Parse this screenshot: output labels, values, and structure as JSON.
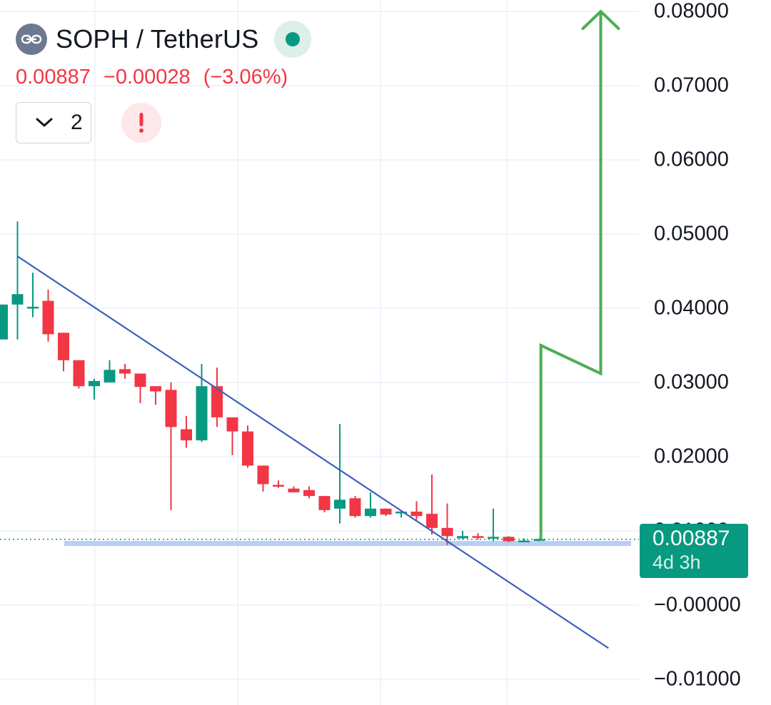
{
  "header": {
    "pair_title": "SOPH / TetherUS",
    "last_price": "0.00887",
    "change_abs": "−0.00028",
    "change_pct": "(−3.06%)",
    "indicators_count": "2",
    "logo_icon": "soph-logo-icon",
    "live_icon": "market-open-dot-icon",
    "alert_icon": "exclamation-icon"
  },
  "price_tag": {
    "price": "0.00887",
    "countdown": "4d 3h"
  },
  "colors": {
    "up": "#089981",
    "down": "#f23645",
    "trendline": "#3d5fbf",
    "projection": "#4caf50",
    "support": "#b9cdf5",
    "price_tag": "#089981"
  },
  "chart_data": {
    "type": "candlestick",
    "title": "SOPH / TetherUS",
    "y_axis": {
      "ticks": [
        "0.08000",
        "0.07000",
        "0.06000",
        "0.05000",
        "0.04000",
        "0.03000",
        "0.02000",
        "0.01000",
        "−0.00000",
        "−0.01000"
      ],
      "tick_values": [
        0.08,
        0.07,
        0.06,
        0.05,
        0.04,
        0.03,
        0.02,
        0.01,
        0.0,
        -0.01
      ]
    },
    "grid": true,
    "last_price": 0.00887,
    "candles": [
      {
        "o": 0.0358,
        "h": 0.0405,
        "l": 0.0358,
        "c": 0.0405
      },
      {
        "o": 0.0405,
        "h": 0.0517,
        "l": 0.0358,
        "c": 0.0419
      },
      {
        "o": 0.0402,
        "h": 0.0448,
        "l": 0.0388,
        "c": 0.0402
      },
      {
        "o": 0.041,
        "h": 0.0425,
        "l": 0.0355,
        "c": 0.0365
      },
      {
        "o": 0.0367,
        "h": 0.0367,
        "l": 0.0315,
        "c": 0.033
      },
      {
        "o": 0.033,
        "h": 0.033,
        "l": 0.0292,
        "c": 0.0295
      },
      {
        "o": 0.0295,
        "h": 0.0305,
        "l": 0.0277,
        "c": 0.0302
      },
      {
        "o": 0.03,
        "h": 0.033,
        "l": 0.03,
        "c": 0.0317
      },
      {
        "o": 0.0318,
        "h": 0.0325,
        "l": 0.0305,
        "c": 0.0312
      },
      {
        "o": 0.0312,
        "h": 0.0312,
        "l": 0.0272,
        "c": 0.0294
      },
      {
        "o": 0.0295,
        "h": 0.0295,
        "l": 0.027,
        "c": 0.0288
      },
      {
        "o": 0.029,
        "h": 0.03,
        "l": 0.0128,
        "c": 0.024
      },
      {
        "o": 0.0237,
        "h": 0.0255,
        "l": 0.0212,
        "c": 0.0222
      },
      {
        "o": 0.0222,
        "h": 0.0325,
        "l": 0.022,
        "c": 0.0295
      },
      {
        "o": 0.0295,
        "h": 0.032,
        "l": 0.024,
        "c": 0.0253
      },
      {
        "o": 0.0253,
        "h": 0.0253,
        "l": 0.0202,
        "c": 0.0234
      },
      {
        "o": 0.0234,
        "h": 0.0242,
        "l": 0.0185,
        "c": 0.0188
      },
      {
        "o": 0.0188,
        "h": 0.0188,
        "l": 0.0153,
        "c": 0.0163
      },
      {
        "o": 0.0162,
        "h": 0.0168,
        "l": 0.0158,
        "c": 0.016
      },
      {
        "o": 0.0157,
        "h": 0.016,
        "l": 0.0152,
        "c": 0.0152
      },
      {
        "o": 0.0155,
        "h": 0.016,
        "l": 0.0144,
        "c": 0.0147
      },
      {
        "o": 0.0147,
        "h": 0.0147,
        "l": 0.0125,
        "c": 0.0128
      },
      {
        "o": 0.013,
        "h": 0.0244,
        "l": 0.011,
        "c": 0.0142
      },
      {
        "o": 0.0144,
        "h": 0.0147,
        "l": 0.0118,
        "c": 0.012
      },
      {
        "o": 0.012,
        "h": 0.0152,
        "l": 0.0118,
        "c": 0.013
      },
      {
        "o": 0.013,
        "h": 0.013,
        "l": 0.012,
        "c": 0.0122
      },
      {
        "o": 0.0124,
        "h": 0.0128,
        "l": 0.0118,
        "c": 0.0126
      },
      {
        "o": 0.0126,
        "h": 0.014,
        "l": 0.0115,
        "c": 0.012
      },
      {
        "o": 0.0123,
        "h": 0.0176,
        "l": 0.0095,
        "c": 0.0104
      },
      {
        "o": 0.0104,
        "h": 0.0137,
        "l": 0.0081,
        "c": 0.0093
      },
      {
        "o": 0.009,
        "h": 0.01,
        "l": 0.0089,
        "c": 0.0093
      },
      {
        "o": 0.0093,
        "h": 0.0097,
        "l": 0.0088,
        "c": 0.0092
      },
      {
        "o": 0.0092,
        "h": 0.013,
        "l": 0.0086,
        "c": 0.0092
      },
      {
        "o": 0.0092,
        "h": 0.0093,
        "l": 0.0085,
        "c": 0.0086
      },
      {
        "o": 0.0087,
        "h": 0.009,
        "l": 0.0085,
        "c": 0.0087
      },
      {
        "o": 0.0087,
        "h": 0.009,
        "l": 0.0086,
        "c": 0.0089
      }
    ],
    "trendline": [
      {
        "i": 1,
        "price": 0.047
      },
      {
        "i": 39.5,
        "price": -0.0058
      }
    ],
    "support_level": 0.0083,
    "projection_path": [
      {
        "i": 35.1,
        "price": 0.0087
      },
      {
        "i": 35.1,
        "price": 0.035
      },
      {
        "i": 39,
        "price": 0.0312
      },
      {
        "i": 39,
        "price": 0.08
      }
    ]
  }
}
